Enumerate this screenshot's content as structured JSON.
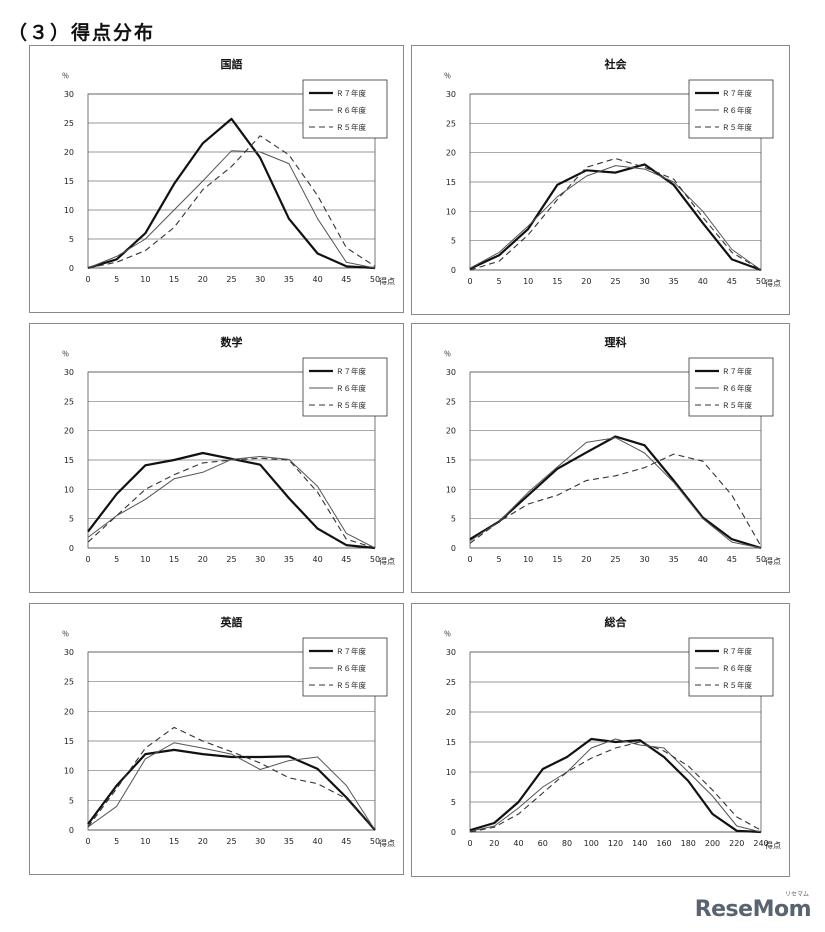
{
  "page": {
    "title": "（３）得点分布",
    "watermark": "ReseMom",
    "watermark_sub": "リセマム"
  },
  "chart_data": [
    {
      "type": "line",
      "title": "国語",
      "ylabel": "％",
      "xlabel": "得点",
      "ylim": [
        0,
        30
      ],
      "yticks": [
        0,
        5,
        10,
        15,
        20,
        25,
        30
      ],
      "x": [
        0,
        5,
        10,
        15,
        20,
        25,
        30,
        35,
        40,
        45,
        50
      ],
      "legend_position": "top-right",
      "series": [
        {
          "name": "Ｒ７年度",
          "style": "bold",
          "values": [
            0,
            1.5,
            6,
            14.5,
            21.5,
            25.7,
            19,
            8.5,
            2.5,
            0.3,
            0
          ]
        },
        {
          "name": "Ｒ６年度",
          "style": "thin",
          "values": [
            0,
            2,
            5,
            10,
            15,
            20.2,
            20,
            18,
            8.5,
            1,
            0
          ]
        },
        {
          "name": "Ｒ５年度",
          "style": "dashed",
          "values": [
            0,
            1,
            3,
            7,
            13.5,
            17.5,
            22.8,
            19.5,
            12.5,
            3.5,
            0.3
          ]
        }
      ]
    },
    {
      "type": "line",
      "title": "社会",
      "ylabel": "％",
      "xlabel": "得点",
      "ylim": [
        0,
        30
      ],
      "yticks": [
        0,
        5,
        10,
        15,
        20,
        25,
        30
      ],
      "x": [
        0,
        5,
        10,
        15,
        20,
        25,
        30,
        35,
        40,
        45,
        50
      ],
      "legend_position": "top-right",
      "series": [
        {
          "name": "Ｒ７年度",
          "style": "bold",
          "values": [
            0.2,
            2.5,
            7,
            14.5,
            17,
            16.6,
            18,
            14.5,
            8,
            1.8,
            0
          ]
        },
        {
          "name": "Ｒ６年度",
          "style": "thin",
          "values": [
            0.3,
            3,
            7.5,
            12.5,
            16,
            17.8,
            17.2,
            15,
            10,
            3.5,
            0
          ]
        },
        {
          "name": "Ｒ５年度",
          "style": "dashed",
          "values": [
            0,
            1.5,
            6,
            12,
            17.5,
            19,
            17.5,
            15.5,
            9,
            3,
            0
          ]
        }
      ]
    },
    {
      "type": "line",
      "title": "数学",
      "ylabel": "％",
      "xlabel": "得点",
      "ylim": [
        0,
        30
      ],
      "yticks": [
        0,
        5,
        10,
        15,
        20,
        25,
        30
      ],
      "x": [
        0,
        5,
        10,
        15,
        20,
        25,
        30,
        35,
        40,
        45,
        50
      ],
      "legend_position": "top-right",
      "series": [
        {
          "name": "Ｒ７年度",
          "style": "bold",
          "values": [
            2.8,
            9.2,
            14.1,
            15,
            16.2,
            15.2,
            14.2,
            8.5,
            3.3,
            0.5,
            0
          ]
        },
        {
          "name": "Ｒ６年度",
          "style": "thin",
          "values": [
            1.8,
            5.5,
            8.3,
            11.8,
            12.9,
            15.1,
            15.6,
            15.1,
            10.5,
            2.5,
            0
          ]
        },
        {
          "name": "Ｒ５年度",
          "style": "dashed",
          "values": [
            1,
            5.5,
            10,
            12.5,
            14.5,
            15,
            15.3,
            15,
            9.5,
            1.5,
            0
          ]
        }
      ]
    },
    {
      "type": "line",
      "title": "理科",
      "ylabel": "％",
      "xlabel": "得点",
      "ylim": [
        0,
        30
      ],
      "yticks": [
        0,
        5,
        10,
        15,
        20,
        25,
        30
      ],
      "x": [
        0,
        5,
        10,
        15,
        20,
        25,
        30,
        35,
        40,
        45,
        50
      ],
      "legend_position": "top-right",
      "series": [
        {
          "name": "Ｒ７年度",
          "style": "bold",
          "values": [
            1.5,
            4.5,
            9,
            13.5,
            16.3,
            19,
            17.5,
            11.5,
            5.2,
            1.5,
            0
          ]
        },
        {
          "name": "Ｒ６年度",
          "style": "thin",
          "values": [
            1.2,
            4.5,
            9.5,
            13.8,
            18,
            18.8,
            16.2,
            11.2,
            5,
            1,
            0
          ]
        },
        {
          "name": "Ｒ５年度",
          "style": "dashed",
          "values": [
            0.8,
            4.5,
            7.5,
            9,
            11.5,
            12.3,
            13.7,
            16,
            14.8,
            9,
            0.3
          ]
        }
      ]
    },
    {
      "type": "line",
      "title": "英語",
      "ylabel": "％",
      "xlabel": "得点",
      "ylim": [
        0,
        30
      ],
      "yticks": [
        0,
        5,
        10,
        15,
        20,
        25,
        30
      ],
      "x": [
        0,
        5,
        10,
        15,
        20,
        25,
        30,
        35,
        40,
        45,
        50
      ],
      "legend_position": "top-right",
      "series": [
        {
          "name": "Ｒ７年度",
          "style": "bold",
          "values": [
            1,
            7.5,
            12.8,
            13.5,
            12.8,
            12.3,
            12.3,
            12.4,
            10.3,
            5.5,
            0
          ]
        },
        {
          "name": "Ｒ６年度",
          "style": "thin",
          "values": [
            0.5,
            4,
            12,
            14.7,
            13.8,
            12.8,
            10.2,
            11.7,
            12.3,
            7.5,
            0
          ]
        },
        {
          "name": "Ｒ５年度",
          "style": "dashed",
          "values": [
            0.5,
            7,
            13.8,
            17.3,
            15,
            13.2,
            11.3,
            8.8,
            7.8,
            5.3,
            0
          ]
        }
      ]
    },
    {
      "type": "line",
      "title": "総合",
      "ylabel": "％",
      "xlabel": "得点",
      "ylim": [
        0,
        30
      ],
      "yticks": [
        0,
        5,
        10,
        15,
        20,
        25,
        30
      ],
      "x": [
        0,
        20,
        40,
        60,
        80,
        100,
        120,
        140,
        160,
        180,
        200,
        220,
        240
      ],
      "legend_position": "top-right",
      "series": [
        {
          "name": "Ｒ７年度",
          "style": "bold",
          "values": [
            0.3,
            1.5,
            5,
            10.5,
            12.5,
            15.5,
            15,
            15.3,
            12.5,
            8.5,
            3,
            0.2,
            0
          ]
        },
        {
          "name": "Ｒ６年度",
          "style": "thin",
          "values": [
            0.1,
            1,
            4,
            7.5,
            10,
            14,
            15.5,
            14.5,
            14,
            10,
            6,
            1,
            0
          ]
        },
        {
          "name": "Ｒ５年度",
          "style": "dashed",
          "values": [
            0,
            0.8,
            3,
            6.5,
            10,
            12.3,
            14,
            15,
            13.5,
            11,
            7,
            2.5,
            0.3
          ]
        }
      ]
    }
  ]
}
